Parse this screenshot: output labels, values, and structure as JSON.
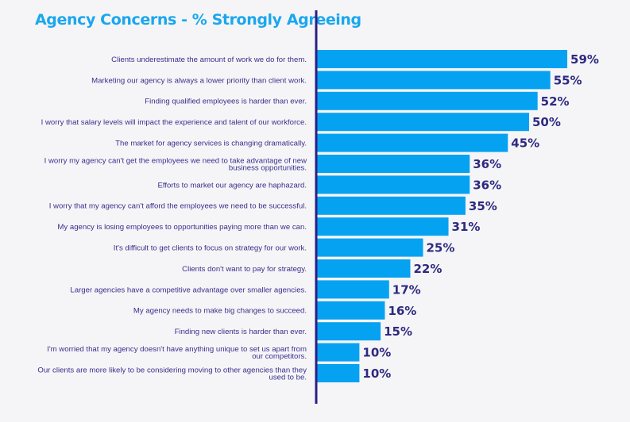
{
  "colors": {
    "title": "#1aa7ee",
    "bar": "#06a2f2",
    "axis": "#2b1f86",
    "label": "#3a2f8c",
    "value": "#2e2a80",
    "background": "#f5f5f7"
  },
  "chart_data": {
    "type": "bar",
    "orientation": "horizontal",
    "title": "Agency Concerns - % Strongly Agreeing",
    "xlabel": "",
    "ylabel": "",
    "xlim": [
      0,
      60
    ],
    "grid": false,
    "categories": [
      [
        "Clients underestimate the amount of work we do for them."
      ],
      [
        "Marketing our agency is always a lower priority than client work."
      ],
      [
        "Finding qualified employees is harder than ever."
      ],
      [
        "I worry that salary levels will impact the experience and talent of our workforce."
      ],
      [
        "The market for agency services is changing dramatically."
      ],
      [
        "I worry my agency can't get the employees we need to take advantage of new",
        "business opportunities."
      ],
      [
        "Efforts to market our agency are haphazard."
      ],
      [
        "I worry that my agency can't afford the employees we need to be successful."
      ],
      [
        "My agency is losing employees to opportunities paying more than we can."
      ],
      [
        "It's difficult to get clients to focus on strategy for our work."
      ],
      [
        "Clients don't want to pay for strategy."
      ],
      [
        "Larger agencies have a competitive advantage over smaller agencies."
      ],
      [
        "My agency needs to make big changes to succeed."
      ],
      [
        "Finding new clients is harder than ever."
      ],
      [
        "I'm worried that my agency doesn't have anything unique to set us apart from",
        "our competitors."
      ],
      [
        "Our clients are more likely to be considering moving to other agencies than they",
        "used to be."
      ]
    ],
    "values": [
      59,
      55,
      52,
      50,
      45,
      36,
      36,
      35,
      31,
      25,
      22,
      17,
      16,
      15,
      10,
      10
    ],
    "value_labels": [
      "59%",
      "55%",
      "52%",
      "50%",
      "45%",
      "36%",
      "36%",
      "35%",
      "31%",
      "25%",
      "22%",
      "17%",
      "16%",
      "15%",
      "10%",
      "10%"
    ]
  }
}
